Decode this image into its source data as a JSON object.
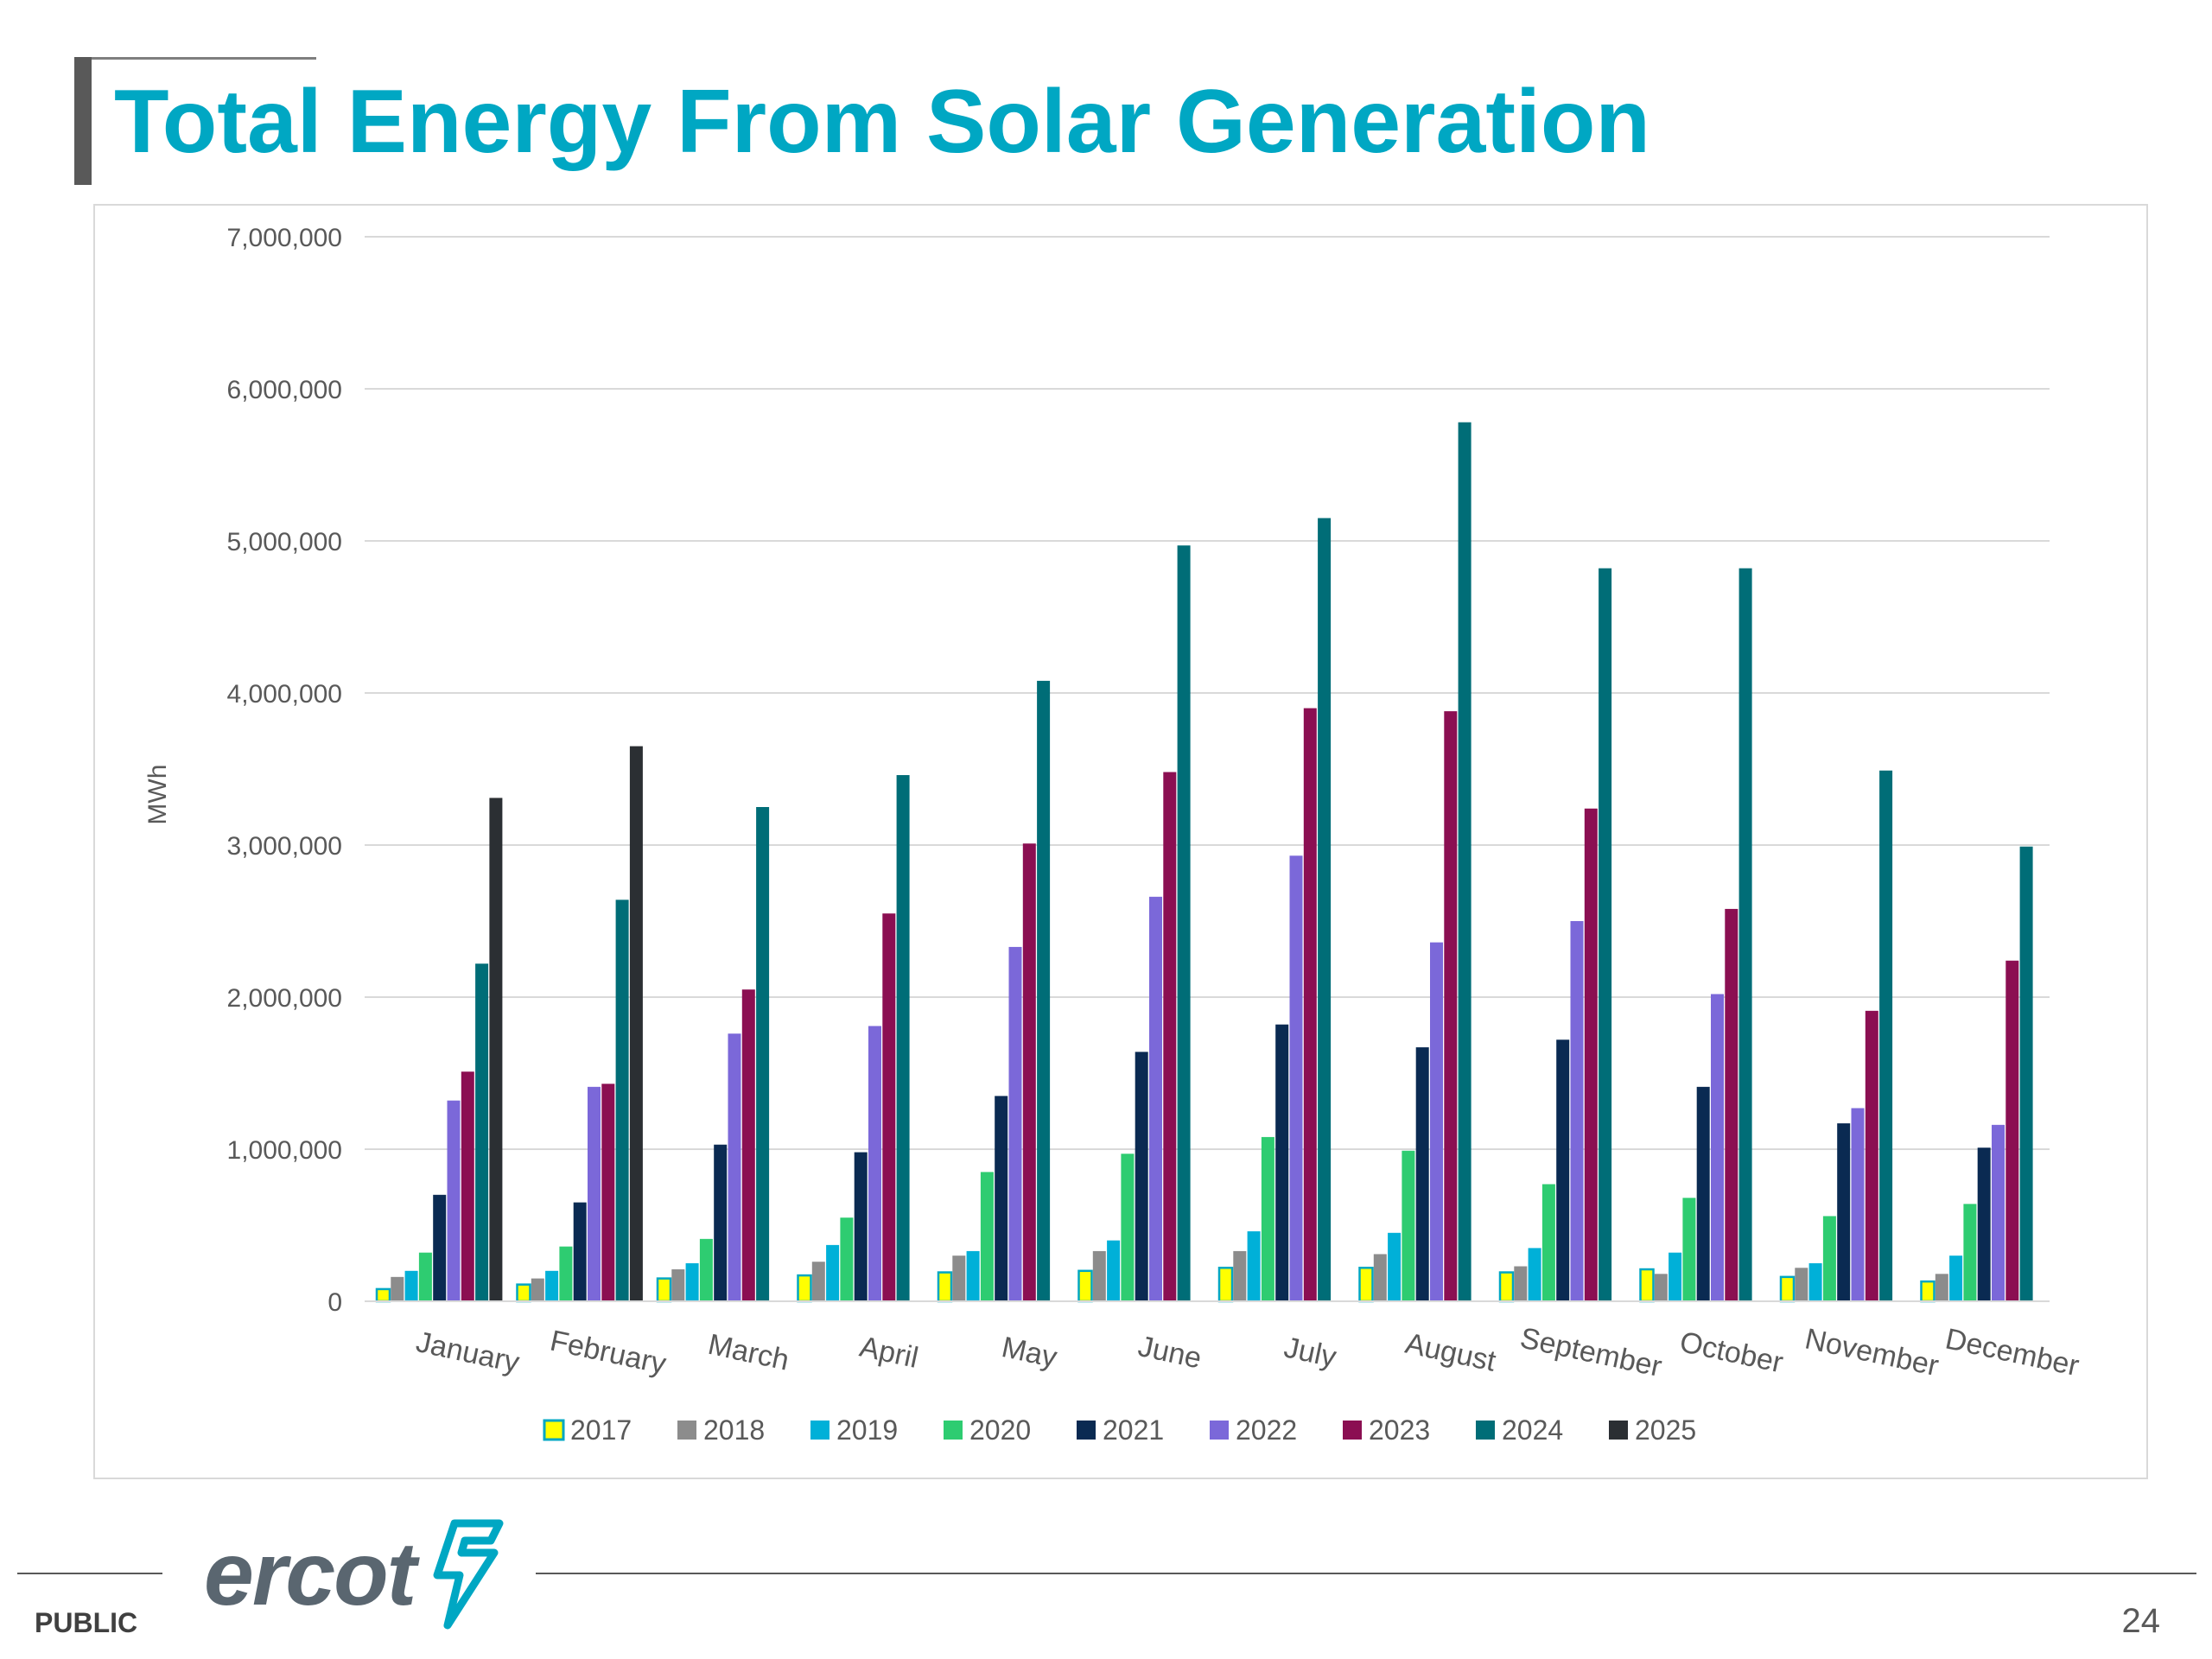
{
  "slide": {
    "title": "Total Energy From Solar Generation",
    "footer_label": "PUBLIC",
    "page_number": "24",
    "logo_text": "ercot"
  },
  "colors": {
    "title": "#00a7c3",
    "series": {
      "2017": "#ffff00",
      "2018": "#8c8c8c",
      "2019": "#00b0d8",
      "2020": "#2ecc71",
      "2021": "#0a2a52",
      "2022": "#7b68d9",
      "2023": "#8b0f52",
      "2024": "#006d77",
      "2025": "#2b2f33"
    },
    "series_2017_border": "#00a7c3"
  },
  "chart_data": {
    "type": "bar",
    "title": "",
    "xlabel": "",
    "ylabel": "MWh",
    "ylim": [
      0,
      7000000
    ],
    "yticks": [
      0,
      1000000,
      2000000,
      3000000,
      4000000,
      5000000,
      6000000,
      7000000
    ],
    "ytick_labels": [
      "0",
      "1,000,000",
      "2,000,000",
      "3,000,000",
      "4,000,000",
      "5,000,000",
      "6,000,000",
      "7,000,000"
    ],
    "grid": true,
    "legend_position": "bottom",
    "categories": [
      "January",
      "February",
      "March",
      "April",
      "May",
      "June",
      "July",
      "August",
      "September",
      "October",
      "November",
      "December"
    ],
    "series": [
      {
        "name": "2017",
        "values": [
          80000,
          110000,
          150000,
          170000,
          190000,
          200000,
          220000,
          220000,
          190000,
          210000,
          160000,
          130000
        ]
      },
      {
        "name": "2018",
        "values": [
          160000,
          150000,
          210000,
          260000,
          300000,
          330000,
          330000,
          310000,
          230000,
          180000,
          220000,
          180000
        ]
      },
      {
        "name": "2019",
        "values": [
          200000,
          200000,
          250000,
          370000,
          330000,
          400000,
          460000,
          450000,
          350000,
          320000,
          250000,
          300000
        ]
      },
      {
        "name": "2020",
        "values": [
          320000,
          360000,
          410000,
          550000,
          850000,
          970000,
          1080000,
          990000,
          770000,
          680000,
          560000,
          640000
        ]
      },
      {
        "name": "2021",
        "values": [
          700000,
          650000,
          1030000,
          980000,
          1350000,
          1640000,
          1820000,
          1670000,
          1720000,
          1410000,
          1170000,
          1010000
        ]
      },
      {
        "name": "2022",
        "values": [
          1320000,
          1410000,
          1760000,
          1810000,
          2330000,
          2660000,
          2930000,
          2360000,
          2500000,
          2020000,
          1270000,
          1160000
        ]
      },
      {
        "name": "2023",
        "values": [
          1510000,
          1430000,
          2050000,
          2550000,
          3010000,
          3480000,
          3900000,
          3880000,
          3240000,
          2580000,
          1910000,
          2240000
        ]
      },
      {
        "name": "2024",
        "values": [
          2220000,
          2640000,
          3250000,
          3460000,
          4080000,
          4970000,
          5150000,
          5780000,
          4820000,
          4820000,
          3490000,
          2990000
        ]
      },
      {
        "name": "2025",
        "values": [
          3310000,
          3650000,
          null,
          null,
          null,
          null,
          null,
          null,
          null,
          null,
          null,
          null
        ]
      }
    ]
  }
}
